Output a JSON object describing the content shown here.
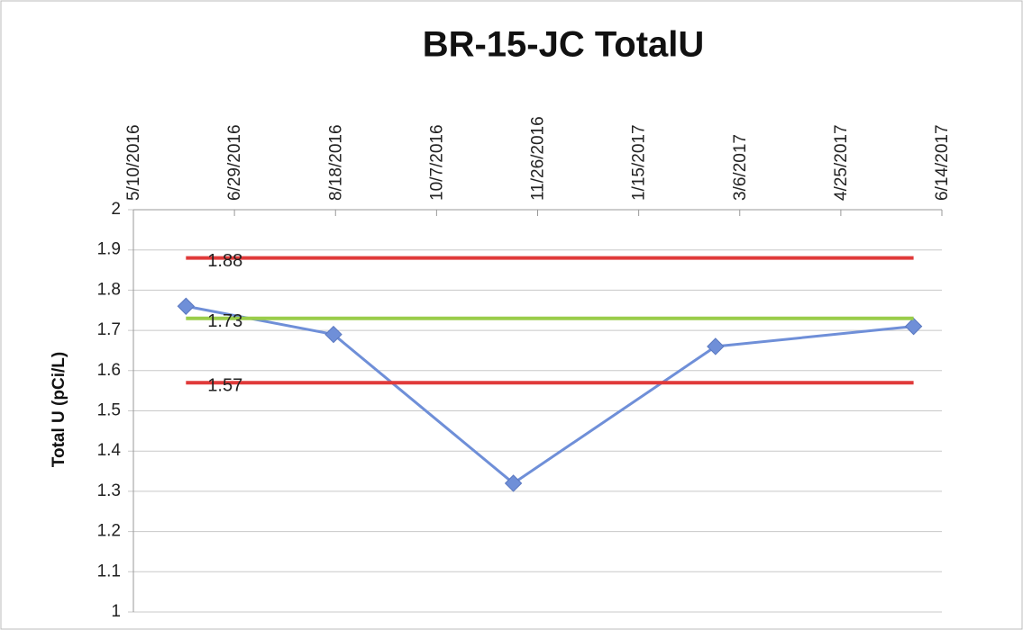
{
  "chart_data": {
    "type": "line",
    "title": "BR-15-JC TotalU",
    "y_label": "Total U (pCi/L)",
    "xlim": [
      "5/10/2016",
      "6/14/2017"
    ],
    "xticks": [
      "5/10/2016",
      "6/29/2016",
      "8/18/2016",
      "10/7/2016",
      "11/26/2016",
      "1/15/2017",
      "3/6/2017",
      "4/25/2017",
      "6/14/2017"
    ],
    "ylim": [
      1,
      2
    ],
    "yticks": [
      1,
      1.1,
      1.2,
      1.3,
      1.4,
      1.5,
      1.6,
      1.7,
      1.8,
      1.9,
      2
    ],
    "grid": true,
    "series": [
      {
        "color": "#6f8fd8",
        "marker": "diamond",
        "x": [
          "6/5/2016",
          "8/17/2016",
          "11/14/2016",
          "2/22/2017",
          "5/31/2017"
        ],
        "values": [
          1.76,
          1.69,
          1.32,
          1.66,
          1.71
        ]
      },
      {
        "color": "#e03a3a",
        "x": [
          "6/5/2016",
          "5/31/2017"
        ],
        "values": [
          1.88,
          1.88
        ]
      },
      {
        "color": "#9acd4a",
        "x": [
          "6/5/2016",
          "5/31/2017"
        ],
        "values": [
          1.73,
          1.73
        ]
      },
      {
        "color": "#e03a3a",
        "x": [
          "6/5/2016",
          "5/31/2017"
        ],
        "values": [
          1.57,
          1.57
        ]
      }
    ]
  }
}
